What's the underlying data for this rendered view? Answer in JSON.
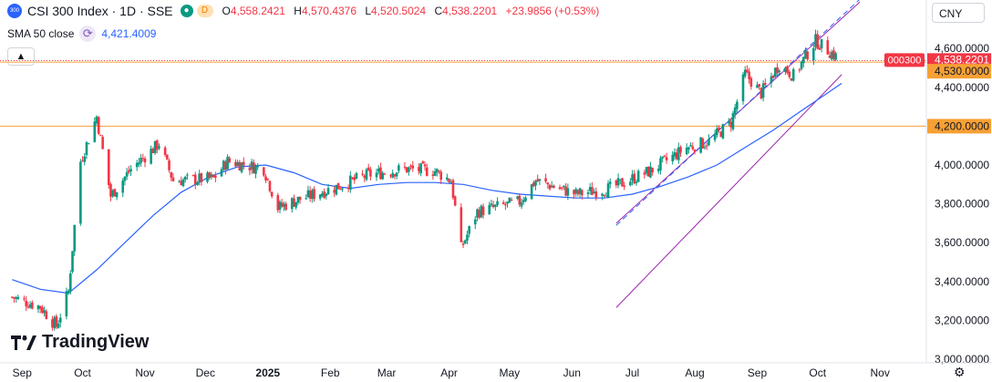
{
  "legend": {
    "logo_text": "300",
    "title": "CSI 300 Index · 1D · SSE",
    "badge_live": "●",
    "badge_delayed": "D",
    "open_label": "O",
    "open": "4,558.2421",
    "high_label": "H",
    "high": "4,570.4376",
    "low_label": "L",
    "low": "4,520.5024",
    "close_label": "C",
    "close": "4,538.2201",
    "change": "+23.9856 (+0.53%)"
  },
  "sma": {
    "label": "SMA 50 close",
    "icon": "cycle-icon",
    "value": "4,421.4009"
  },
  "currency": "CNY",
  "collapse_icon": "chevron-up-icon",
  "brand": "TradingView",
  "settings_icon": "gear-icon",
  "colors": {
    "up": "#089981",
    "down": "#f23645",
    "sma": "#2962ff",
    "channel": "#9c27b0",
    "hline": "#f7a035",
    "price_tag": "#f23645"
  },
  "chart_data": {
    "type": "candlestick",
    "symbol": "000300",
    "y_range": [
      3000,
      4850
    ],
    "y_ticks": [
      "3,000.0000",
      "3,200.0000",
      "3,400.0000",
      "3,600.0000",
      "3,800.0000",
      "4,000.0000",
      "4,200.0000",
      "4,400.0000",
      "4,600.0000"
    ],
    "x_labels": [
      "Sep",
      "Oct",
      "Nov",
      "Dec",
      "2025",
      "Feb",
      "Mar",
      "Apr",
      "May",
      "Jun",
      "Jul",
      "Aug",
      "Sep",
      "Oct",
      "Nov"
    ],
    "last_price": {
      "symbol": "000300",
      "value": 4538.2201,
      "label": "4,538.2201"
    },
    "horizontal_lines": [
      {
        "value": 4530,
        "label": "4,530.0000"
      },
      {
        "value": 4200,
        "label": "4,200.0000"
      }
    ],
    "sma_path": [
      [
        "2024-08-27",
        3410
      ],
      [
        "2024-09-10",
        3360
      ],
      [
        "2024-09-24",
        3340
      ],
      [
        "2024-10-08",
        3460
      ],
      [
        "2024-10-22",
        3600
      ],
      [
        "2024-11-05",
        3740
      ],
      [
        "2024-11-19",
        3860
      ],
      [
        "2024-12-03",
        3940
      ],
      [
        "2024-12-17",
        3990
      ],
      [
        "2024-12-31",
        4000
      ],
      [
        "2025-01-14",
        3960
      ],
      [
        "2025-01-28",
        3900
      ],
      [
        "2025-02-11",
        3880
      ],
      [
        "2025-02-25",
        3900
      ],
      [
        "2025-03-11",
        3910
      ],
      [
        "2025-03-25",
        3910
      ],
      [
        "2025-04-08",
        3900
      ],
      [
        "2025-04-22",
        3870
      ],
      [
        "2025-05-06",
        3850
      ],
      [
        "2025-05-20",
        3840
      ],
      [
        "2025-06-03",
        3830
      ],
      [
        "2025-06-17",
        3830
      ],
      [
        "2025-07-01",
        3850
      ],
      [
        "2025-07-15",
        3890
      ],
      [
        "2025-07-29",
        3940
      ],
      [
        "2025-08-12",
        4000
      ],
      [
        "2025-08-26",
        4090
      ],
      [
        "2025-09-09",
        4180
      ],
      [
        "2025-09-23",
        4280
      ],
      [
        "2025-10-13",
        4421
      ]
    ],
    "channel": {
      "lower_start": [
        "2025-06-23",
        3700
      ],
      "lower_end": [
        "2025-10-22",
        4840
      ],
      "upper_start": [
        "2025-06-23",
        3970
      ],
      "upper_end": [
        "2025-10-13",
        4560
      ],
      "mid_start": [
        "2025-06-23",
        3830
      ],
      "mid_end": [
        "2025-10-22",
        4760
      ]
    },
    "anchors": [
      [
        "2024-08-27",
        3320
      ],
      [
        "2024-09-10",
        3270
      ],
      [
        "2024-09-18",
        3170
      ],
      [
        "2024-09-24",
        3350
      ],
      [
        "2024-09-30",
        4020
      ],
      [
        "2024-10-08",
        4250
      ],
      [
        "2024-10-15",
        3840
      ],
      [
        "2024-10-25",
        3980
      ],
      [
        "2024-11-08",
        4110
      ],
      [
        "2024-11-15",
        3920
      ],
      [
        "2024-12-05",
        3930
      ],
      [
        "2024-12-12",
        4020
      ],
      [
        "2024-12-30",
        3980
      ],
      [
        "2025-01-06",
        3780
      ],
      [
        "2025-01-13",
        3810
      ],
      [
        "2025-02-05",
        3890
      ],
      [
        "2025-02-20",
        3950
      ],
      [
        "2025-03-10",
        3980
      ],
      [
        "2025-03-25",
        3970
      ],
      [
        "2025-04-02",
        3920
      ],
      [
        "2025-04-07",
        3570
      ],
      [
        "2025-04-15",
        3760
      ],
      [
        "2025-05-06",
        3810
      ],
      [
        "2025-05-14",
        3920
      ],
      [
        "2025-06-03",
        3850
      ],
      [
        "2025-06-20",
        3880
      ],
      [
        "2025-07-10",
        3970
      ],
      [
        "2025-07-28",
        4090
      ],
      [
        "2025-08-08",
        4120
      ],
      [
        "2025-08-19",
        4220
      ],
      [
        "2025-08-26",
        4470
      ],
      [
        "2025-09-03",
        4370
      ],
      [
        "2025-09-12",
        4520
      ],
      [
        "2025-09-19",
        4460
      ],
      [
        "2025-09-30",
        4640
      ],
      [
        "2025-10-10",
        4560
      ],
      [
        "2025-10-13",
        4538
      ]
    ]
  }
}
